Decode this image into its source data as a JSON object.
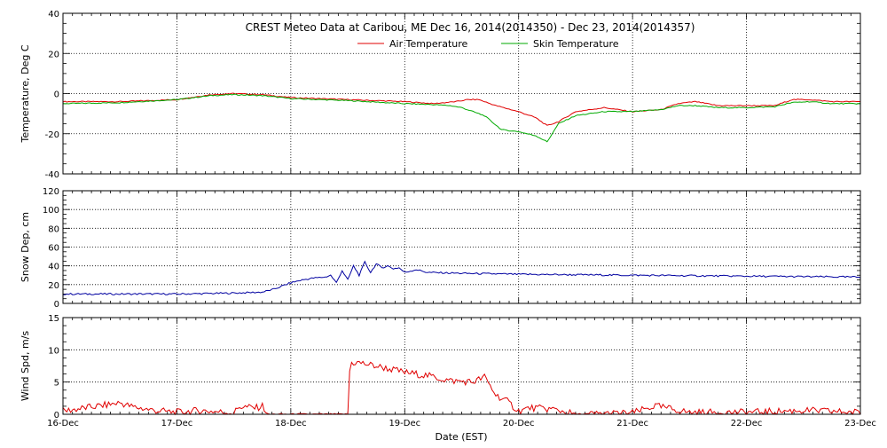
{
  "chart_data": {
    "title": "CREST Meteo Data at Caribou, ME   Dec 16, 2014(2014350) - Dec 23, 2014(2014357)",
    "xlabel": "Date (EST)",
    "x_ticks": [
      "16-Dec",
      "17-Dec",
      "18-Dec",
      "19-Dec",
      "20-Dec",
      "21-Dec",
      "22-Dec",
      "23-Dec"
    ],
    "xlim": [
      "16-Dec",
      "23-Dec"
    ],
    "grid": true,
    "panels": [
      {
        "type": "line",
        "ylabel": "Temperature, Deg C",
        "ylim": [
          -40,
          40
        ],
        "y_ticks": [
          40,
          20,
          0,
          -20,
          -40
        ],
        "legend": "top-center",
        "series": [
          {
            "name": "Air Temperature",
            "color": "#e00000",
            "x": [
              0,
              0.5,
              1.0,
              1.3,
              1.5,
              1.75,
              2.0,
              2.5,
              3.0,
              3.25,
              3.45,
              3.55,
              3.65,
              3.8,
              4.0,
              4.15,
              4.25,
              4.35,
              4.5,
              4.75,
              5.0,
              5.25,
              5.4,
              5.55,
              5.75,
              6.0,
              6.25,
              6.4,
              6.55,
              6.75,
              7.0
            ],
            "y": [
              -4,
              -4,
              -3,
              -0.5,
              0,
              -0.5,
              -2,
              -3,
              -4,
              -5,
              -4,
              -3,
              -3,
              -6,
              -9,
              -12,
              -16,
              -14,
              -9,
              -7,
              -9,
              -8,
              -5,
              -4,
              -6,
              -6,
              -6,
              -3,
              -3,
              -4,
              -4
            ]
          },
          {
            "name": "Skin Temperature",
            "color": "#00aa00",
            "x": [
              0,
              0.5,
              1.0,
              1.3,
              1.5,
              1.75,
              2.0,
              2.5,
              3.0,
              3.25,
              3.4,
              3.5,
              3.7,
              3.85,
              4.0,
              4.15,
              4.25,
              4.35,
              4.5,
              4.75,
              5.0,
              5.25,
              5.4,
              5.55,
              5.75,
              6.0,
              6.25,
              6.4,
              6.55,
              6.75,
              7.0
            ],
            "y": [
              -5,
              -4.5,
              -3,
              -1,
              -0.5,
              -1,
              -2.5,
              -3.5,
              -5,
              -5.5,
              -6,
              -7,
              -11,
              -18,
              -19,
              -21,
              -24,
              -15,
              -11,
              -9,
              -9,
              -8,
              -6,
              -6,
              -7,
              -7,
              -6.5,
              -4.5,
              -4,
              -5,
              -5
            ]
          }
        ]
      },
      {
        "type": "line",
        "ylabel": "Snow Dep, cm",
        "ylim": [
          0,
          120
        ],
        "y_ticks": [
          120,
          100,
          80,
          60,
          40,
          20,
          0
        ],
        "series": [
          {
            "name": "",
            "color": "#0000a0",
            "x": [
              0,
              0.5,
              1.0,
              1.5,
              1.75,
              1.85,
              2.0,
              2.1,
              2.2,
              2.3,
              2.35,
              2.4,
              2.45,
              2.5,
              2.55,
              2.6,
              2.65,
              2.7,
              2.75,
              2.8,
              2.85,
              2.9,
              2.95,
              3.0,
              3.1,
              3.2,
              3.5,
              4.0,
              5.0,
              6.0,
              7.0
            ],
            "y": [
              10,
              10,
              10,
              11,
              12,
              15,
              22,
              25,
              27,
              28,
              30,
              22,
              35,
              25,
              40,
              30,
              44,
              33,
              42,
              38,
              40,
              37,
              38,
              33,
              36,
              33,
              32,
              31,
              30,
              29,
              28
            ]
          }
        ]
      },
      {
        "type": "line",
        "ylabel": "Wind Spd, m/s",
        "ylim": [
          0,
          15
        ],
        "y_ticks": [
          15,
          10,
          5,
          0
        ],
        "series": [
          {
            "name": "",
            "color": "#e00000",
            "x": [
              0,
              0.2,
              0.4,
              0.5,
              0.6,
              0.8,
              1.0,
              1.2,
              1.5,
              1.55,
              1.7,
              1.75,
              1.8,
              2.0,
              2.5,
              2.52,
              2.6,
              2.8,
              3.0,
              3.2,
              3.4,
              3.6,
              3.7,
              3.8,
              3.9,
              4.0,
              4.1,
              4.3,
              4.5,
              5.0,
              5.2,
              5.5,
              6.0,
              6.5,
              7.0
            ],
            "y": [
              0.5,
              1,
              1.5,
              1.8,
              1.2,
              0.6,
              0.3,
              0.6,
              0.2,
              1.2,
              1,
              1.3,
              0,
              0,
              0,
              8,
              8,
              7.3,
              6.5,
              6,
              5.2,
              5,
              5.8,
              3,
              2,
              0.5,
              1,
              0.8,
              0,
              0.2,
              1.3,
              0.3,
              0.3,
              0.6,
              0.3
            ]
          }
        ]
      }
    ]
  }
}
